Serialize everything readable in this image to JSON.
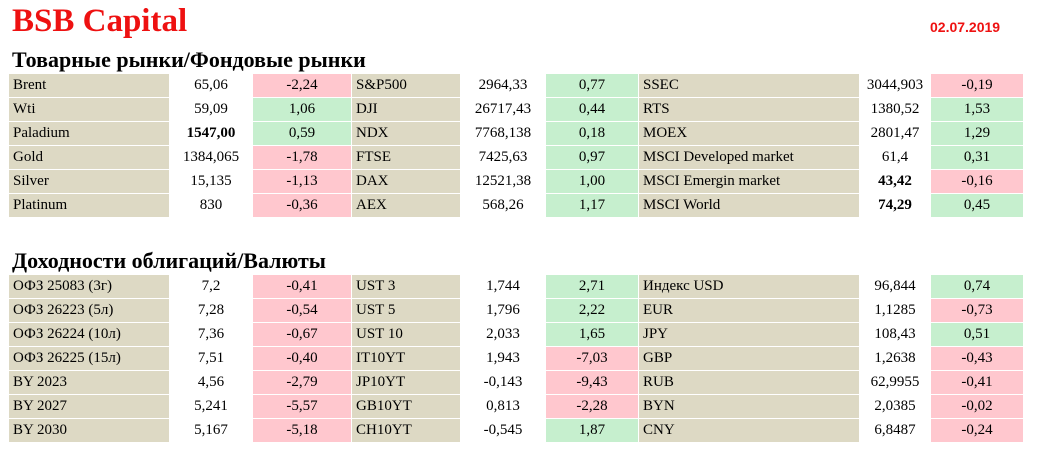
{
  "header": {
    "brand": "BSB Capital",
    "date": "02.07.2019"
  },
  "sections": [
    {
      "title": "Товарные рынки/Фондовые рынки",
      "rows": [
        [
          [
            "Brent",
            "65,06",
            "-2,24"
          ],
          [
            "S&P500",
            "2964,33",
            "0,77"
          ],
          [
            "SSEC",
            "3044,903",
            "-0,19"
          ]
        ],
        [
          [
            "Wti",
            "59,09",
            "1,06"
          ],
          [
            "DJI",
            "26717,43",
            "0,44"
          ],
          [
            "RTS",
            "1380,52",
            "1,53"
          ]
        ],
        [
          [
            "Paladium",
            "1547,00",
            "0,59"
          ],
          [
            "NDX",
            "7768,138",
            "0,18"
          ],
          [
            "MOEX",
            "2801,47",
            "1,29"
          ]
        ],
        [
          [
            "Gold",
            "1384,065",
            "-1,78"
          ],
          [
            "FTSE",
            "7425,63",
            "0,97"
          ],
          [
            "MSCI Developed market",
            "61,4",
            "0,31"
          ]
        ],
        [
          [
            "Silver",
            "15,135",
            "-1,13"
          ],
          [
            "DAX",
            "12521,38",
            "1,00"
          ],
          [
            "MSCI Emergin market",
            "43,42",
            "-0,16"
          ]
        ],
        [
          [
            "Platinum",
            "830",
            "-0,36"
          ],
          [
            "AEX",
            "568,26",
            "1,17"
          ],
          [
            "MSCI World",
            "74,29",
            "0,45"
          ]
        ]
      ]
    },
    {
      "title": "Доходности облигаций/Валюты",
      "rows": [
        [
          [
            "ОФЗ 25083 (3г)",
            "7,2",
            "-0,41"
          ],
          [
            "UST 3",
            "1,744",
            "2,71"
          ],
          [
            "Индекс USD",
            "96,844",
            "0,74"
          ]
        ],
        [
          [
            "ОФЗ 26223 (5л)",
            "7,28",
            "-0,54"
          ],
          [
            "UST 5",
            "1,796",
            "2,22"
          ],
          [
            "EUR",
            "1,1285",
            "-0,73"
          ]
        ],
        [
          [
            "ОФЗ 26224 (10л)",
            "7,36",
            "-0,67"
          ],
          [
            "UST 10",
            "2,033",
            "1,65"
          ],
          [
            "JPY",
            "108,43",
            "0,51"
          ]
        ],
        [
          [
            "ОФЗ 26225 (15л)",
            "7,51",
            "-0,40"
          ],
          [
            "IT10YT",
            "1,943",
            "-7,03"
          ],
          [
            "GBP",
            "1,2638",
            "-0,43"
          ]
        ],
        [
          [
            "BY 2023",
            "4,56",
            "-2,79"
          ],
          [
            "JP10YT",
            "-0,143",
            "-9,43"
          ],
          [
            "RUB",
            "62,9955",
            "-0,41"
          ]
        ],
        [
          [
            "BY 2027",
            "5,241",
            "-5,57"
          ],
          [
            "GB10YT",
            "0,813",
            "-2,28"
          ],
          [
            "BYN",
            "2,0385",
            "-0,02"
          ]
        ],
        [
          [
            "BY 2030",
            "5,167",
            "-5,18"
          ],
          [
            "CH10YT",
            "-0,545",
            "1,87"
          ],
          [
            "CNY",
            "6,8487",
            "-0,24"
          ]
        ]
      ]
    }
  ],
  "colors": {
    "brand": "#ee1111",
    "label_bg": "#ddd9c4",
    "positive_bg": "#c6efce",
    "negative_bg": "#ffc7ce"
  }
}
